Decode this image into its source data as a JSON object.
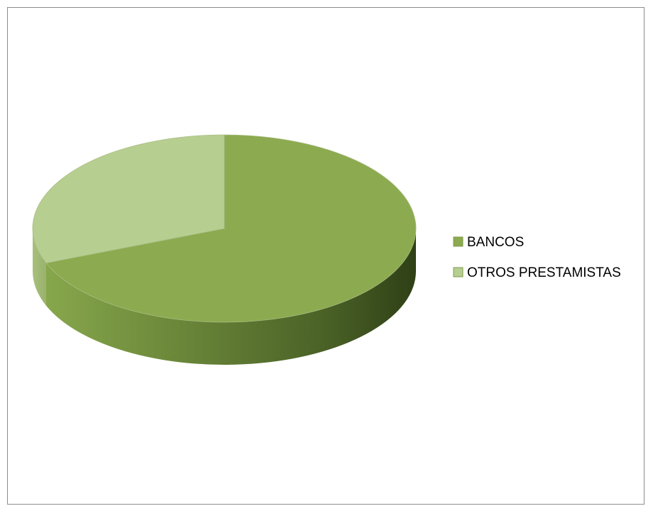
{
  "chart_data": {
    "type": "pie",
    "title": "",
    "categories": [
      "BANCOS",
      "OTROS PRESTAMISTAS"
    ],
    "values": [
      69,
      31
    ],
    "colors": [
      "#8caa4f",
      "#b7ce91"
    ],
    "legend_position": "right",
    "style": "3d"
  }
}
